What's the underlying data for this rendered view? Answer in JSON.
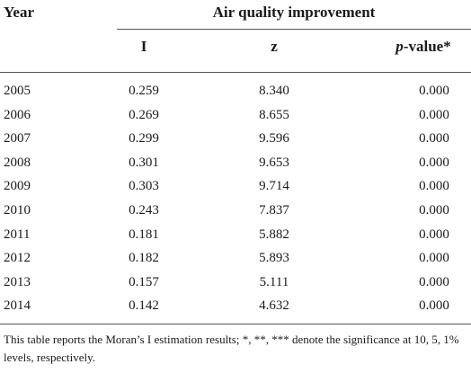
{
  "table": {
    "header": {
      "year": "Year",
      "group": "Air quality improvement",
      "columns": [
        "I",
        "z"
      ],
      "pvalue": {
        "italic": "p",
        "text": "-value*"
      }
    },
    "rows": [
      [
        "2005",
        "0.259",
        "8.340",
        "0.000"
      ],
      [
        "2006",
        "0.269",
        "8.655",
        "0.000"
      ],
      [
        "2007",
        "0.299",
        "9.596",
        "0.000"
      ],
      [
        "2008",
        "0.301",
        "9.653",
        "0.000"
      ],
      [
        "2009",
        "0.303",
        "9.714",
        "0.000"
      ],
      [
        "2010",
        "0.243",
        "7.837",
        "0.000"
      ],
      [
        "2011",
        "0.181",
        "5.882",
        "0.000"
      ],
      [
        "2012",
        "0.182",
        "5.893",
        "0.000"
      ],
      [
        "2013",
        "0.157",
        "5.111",
        "0.000"
      ],
      [
        "2014",
        "0.142",
        "4.632",
        "0.000"
      ]
    ]
  },
  "note": "This table reports the Moran’s I estimation results; *, **, *** denote the significance at 10, 5, 1% levels, respectively."
}
